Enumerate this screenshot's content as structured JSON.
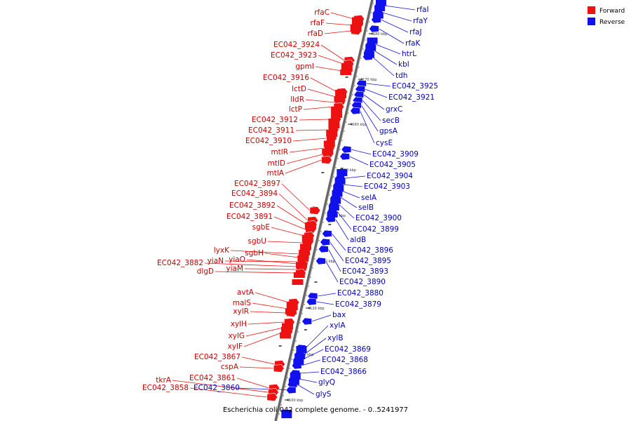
{
  "caption": "Escherichia coli 042 complete genome. - 0..5241977",
  "legend": [
    {
      "label": "Forward",
      "color": "#ee1111"
    },
    {
      "label": "Reverse",
      "color": "#1111ee"
    }
  ],
  "colors": {
    "forward": "#ee1111",
    "reverse": "#1111ee",
    "axis": "#888888"
  },
  "scale_ticks": [
    {
      "label": "4180 kbp",
      "at": 4180
    },
    {
      "label": "4170 kbp",
      "at": 4170
    },
    {
      "label": "4160 kbp",
      "at": 4160
    },
    {
      "label": "4150 kbp",
      "at": 4150
    },
    {
      "label": "4140 kbp",
      "at": 4140
    },
    {
      "label": "4130 kbp",
      "at": 4130
    },
    {
      "label": "4120 kbp",
      "at": 4120
    },
    {
      "label": "4110 kbp",
      "at": 4110
    },
    {
      "label": "4100 kbp",
      "at": 4100
    }
  ],
  "forward_genes": [
    "rfaC",
    "rfaF",
    "rfaD",
    "EC042_3924",
    "EC042_3923",
    "gpmI",
    "EC042_3916",
    "lctD",
    "lldR",
    "lctP",
    "EC042_3912",
    "EC042_3911",
    "EC042_3910",
    "mtlR",
    "mtlD",
    "mtlA",
    "EC042_3897",
    "EC042_3894",
    "EC042_3892",
    "EC042_3891",
    "sgbE",
    "sgbU",
    "lyxK",
    "sgbH",
    "yiaN",
    "yiaO",
    "EC042_3882",
    "yiaM",
    "dlgD",
    "avtA",
    "malS",
    "xylR",
    "xylH",
    "xylG",
    "xylF",
    "EC042_3867",
    "cspA",
    "EC042_3861",
    "tkrA",
    "EC042_3858"
  ],
  "reverse_genes": [
    "rfaI",
    "rfaY",
    "rfaJ",
    "rfaK",
    "htrL",
    "kbl",
    "tdh",
    "EC042_3925",
    "EC042_3921",
    "grxC",
    "secB",
    "gpsA",
    "cysE",
    "EC042_3909",
    "EC042_3905",
    "EC042_3904",
    "EC042_3903",
    "selA",
    "selB",
    "EC042_3900",
    "EC042_3899",
    "aldB",
    "EC042_3896",
    "EC042_3895",
    "EC042_3893",
    "EC042_3890",
    "EC042_3880",
    "EC042_3879",
    "bax",
    "xylA",
    "xylB",
    "EC042_3869",
    "EC042_3868",
    "EC042_3866",
    "glyQ",
    "glyS",
    "EC042_3860"
  ]
}
